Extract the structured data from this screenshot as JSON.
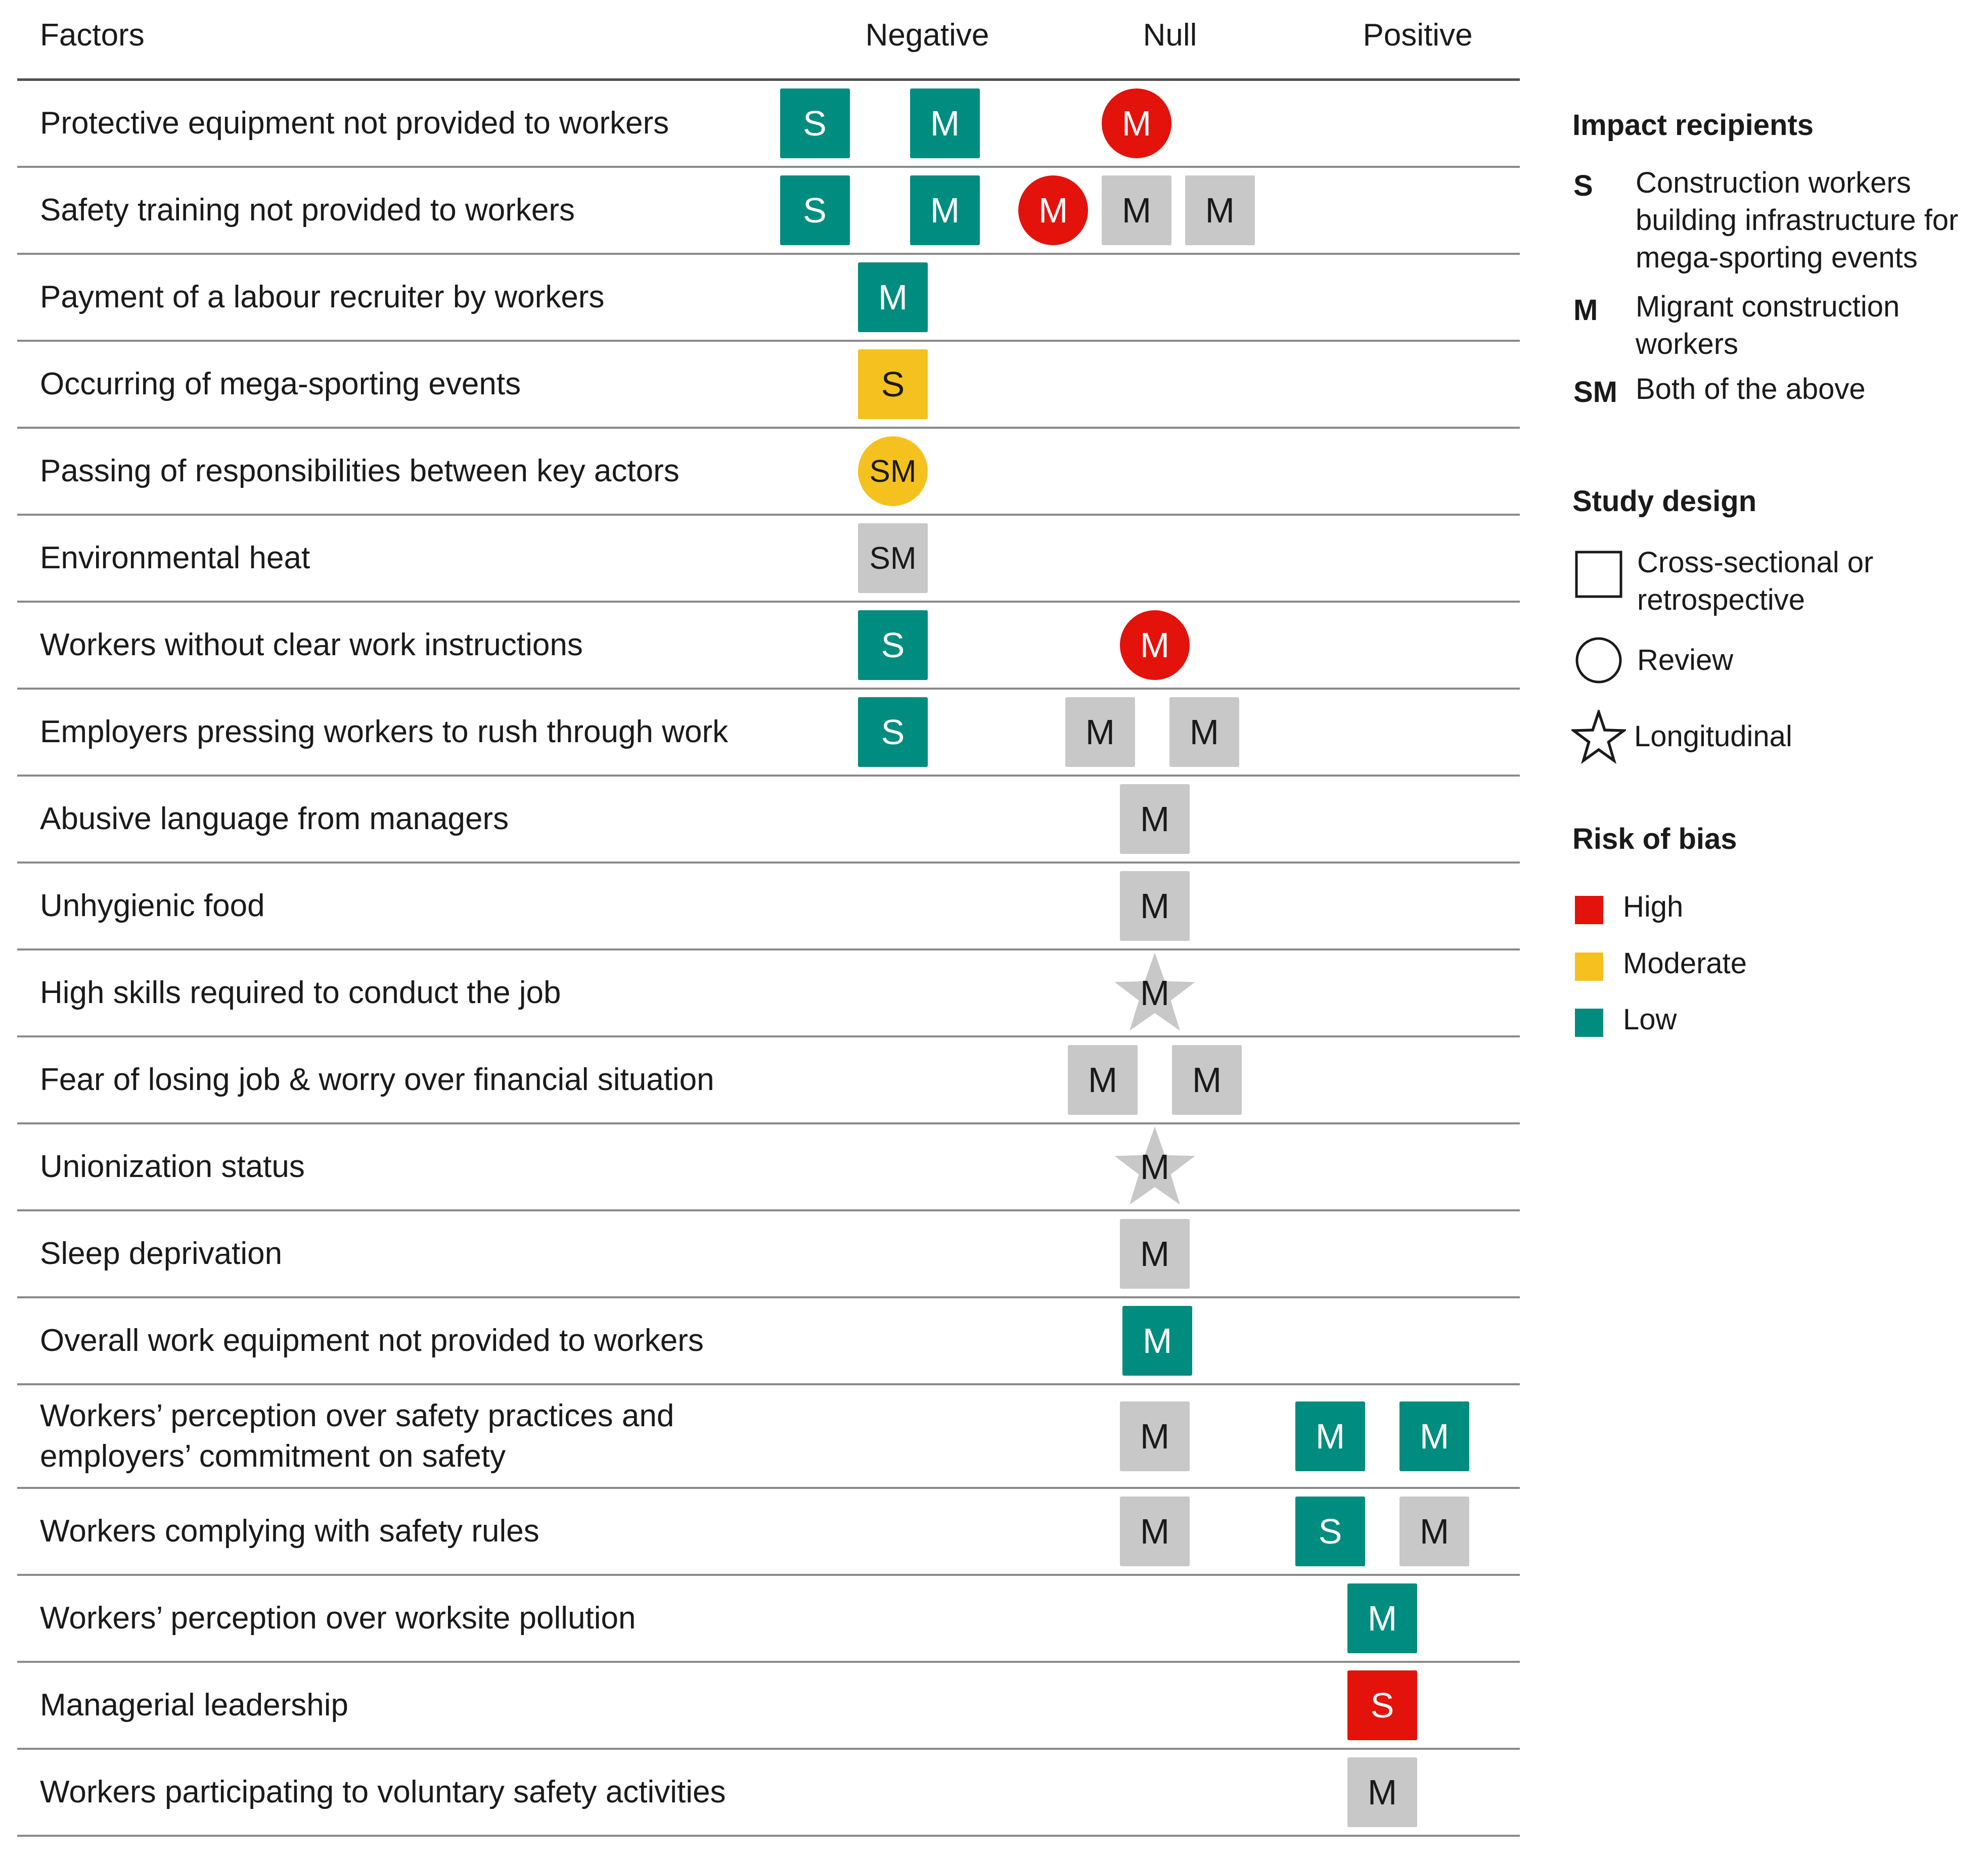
{
  "colors": {
    "high": "#e3120b",
    "moderate": "#f5c11f",
    "low": "#008c7f",
    "unrated": "#c8c8c8"
  },
  "header": {
    "factors": "Factors",
    "negative": "Negative",
    "null": "Null",
    "positive": "Positive"
  },
  "rows": [
    {
      "factor": "Protective equipment not provided to workers",
      "marks": [
        {
          "col": "negative",
          "slot": -1.5,
          "label": "S",
          "risk": "low",
          "shape": "square"
        },
        {
          "col": "negative",
          "slot": 1,
          "label": "M",
          "risk": "low",
          "shape": "square"
        },
        {
          "col": "null",
          "slot": 0,
          "label": "M",
          "risk": "high",
          "shape": "circle"
        }
      ]
    },
    {
      "factor": "Safety training not provided to workers",
      "marks": [
        {
          "col": "negative",
          "slot": -1.5,
          "label": "S",
          "risk": "low",
          "shape": "square"
        },
        {
          "col": "negative",
          "slot": 1,
          "label": "M",
          "risk": "low",
          "shape": "square"
        },
        {
          "col": "null",
          "slot": -1.6,
          "label": "M",
          "risk": "high",
          "shape": "circle"
        },
        {
          "col": "null",
          "slot": 0,
          "label": "M",
          "risk": "unrated",
          "shape": "square"
        },
        {
          "col": "null",
          "slot": 1.6,
          "label": "M",
          "risk": "unrated",
          "shape": "square"
        }
      ]
    },
    {
      "factor": "Payment of a labour recruiter by workers",
      "marks": [
        {
          "col": "negative",
          "slot": 0,
          "label": "M",
          "risk": "low",
          "shape": "square"
        }
      ]
    },
    {
      "factor": "Occurring of mega-sporting events",
      "marks": [
        {
          "col": "negative",
          "slot": 0,
          "label": "S",
          "risk": "moderate",
          "shape": "square"
        }
      ]
    },
    {
      "factor": "Passing of responsibilities between key actors",
      "marks": [
        {
          "col": "negative",
          "slot": 0,
          "label": "SM",
          "risk": "moderate",
          "shape": "circle"
        }
      ]
    },
    {
      "factor": "Environmental heat",
      "marks": [
        {
          "col": "negative",
          "slot": 0,
          "label": "SM",
          "risk": "unrated",
          "shape": "square"
        }
      ]
    },
    {
      "factor": "Workers without clear work instructions",
      "marks": [
        {
          "col": "negative",
          "slot": 0,
          "label": "S",
          "risk": "low",
          "shape": "square"
        },
        {
          "col": "null",
          "slot": 0.35,
          "label": "M",
          "risk": "high",
          "shape": "circle"
        }
      ]
    },
    {
      "factor": "Employers pressing workers to rush through work",
      "marks": [
        {
          "col": "negative",
          "slot": 0,
          "label": "S",
          "risk": "low",
          "shape": "square"
        },
        {
          "col": "null",
          "slot": -0.7,
          "label": "M",
          "risk": "unrated",
          "shape": "square"
        },
        {
          "col": "null",
          "slot": 1.3,
          "label": "M",
          "risk": "unrated",
          "shape": "square"
        }
      ]
    },
    {
      "factor": "Abusive language from managers",
      "marks": [
        {
          "col": "null",
          "slot": 0.35,
          "label": "M",
          "risk": "unrated",
          "shape": "square"
        }
      ]
    },
    {
      "factor": "Unhygienic food",
      "marks": [
        {
          "col": "null",
          "slot": 0.35,
          "label": "M",
          "risk": "unrated",
          "shape": "square"
        }
      ]
    },
    {
      "factor": "High skills required to conduct the job",
      "marks": [
        {
          "col": "null",
          "slot": 0.35,
          "label": "M",
          "risk": "unrated",
          "shape": "star"
        }
      ]
    },
    {
      "factor": "Fear of losing job & worry over financial situation",
      "marks": [
        {
          "col": "null",
          "slot": -0.65,
          "label": "M",
          "risk": "unrated",
          "shape": "square"
        },
        {
          "col": "null",
          "slot": 1.35,
          "label": "M",
          "risk": "unrated",
          "shape": "square"
        }
      ]
    },
    {
      "factor": "Unionization status",
      "marks": [
        {
          "col": "null",
          "slot": 0.35,
          "label": "M",
          "risk": "unrated",
          "shape": "star"
        }
      ]
    },
    {
      "factor": "Sleep deprivation",
      "marks": [
        {
          "col": "null",
          "slot": 0.35,
          "label": "M",
          "risk": "unrated",
          "shape": "square"
        }
      ]
    },
    {
      "factor": "Overall work equipment not provided to workers",
      "marks": [
        {
          "col": "null",
          "slot": 0.4,
          "label": "M",
          "risk": "low",
          "shape": "square"
        }
      ]
    },
    {
      "factor": "Workers’ perception over safety practices and employers’ commitment on safety",
      "tall": true,
      "marks": [
        {
          "col": "null",
          "slot": 0.35,
          "label": "M",
          "risk": "unrated",
          "shape": "square"
        },
        {
          "col": "positive",
          "slot": -1,
          "label": "M",
          "risk": "low",
          "shape": "square"
        },
        {
          "col": "positive",
          "slot": 1,
          "label": "M",
          "risk": "low",
          "shape": "square"
        }
      ]
    },
    {
      "factor": "Workers complying with safety rules",
      "marks": [
        {
          "col": "null",
          "slot": 0.35,
          "label": "M",
          "risk": "unrated",
          "shape": "square"
        },
        {
          "col": "positive",
          "slot": -1,
          "label": "S",
          "risk": "low",
          "shape": "square"
        },
        {
          "col": "positive",
          "slot": 1,
          "label": "M",
          "risk": "unrated",
          "shape": "square"
        }
      ]
    },
    {
      "factor": "Workers’ perception over worksite pollution",
      "marks": [
        {
          "col": "positive",
          "slot": 0,
          "label": "M",
          "risk": "low",
          "shape": "square"
        }
      ]
    },
    {
      "factor": "Managerial leadership",
      "marks": [
        {
          "col": "positive",
          "slot": 0,
          "label": "S",
          "risk": "high",
          "shape": "square"
        }
      ]
    },
    {
      "factor": "Workers participating to voluntary safety activities",
      "marks": [
        {
          "col": "positive",
          "slot": 0,
          "label": "M",
          "risk": "unrated",
          "shape": "square"
        }
      ]
    }
  ],
  "legend": {
    "recipients_title": "Impact recipients",
    "recipients": [
      {
        "code": "S",
        "desc": "Construction workers building infrastructure for mega-sporting events"
      },
      {
        "code": "M",
        "desc": "Migrant construction workers"
      },
      {
        "code": "SM",
        "desc": "Both of the above"
      }
    ],
    "design_title": "Study design",
    "designs": [
      {
        "shape": "square-outline-icon",
        "label": "Cross-sectional or retrospective"
      },
      {
        "shape": "circle-outline-icon",
        "label": "Review"
      },
      {
        "shape": "star-outline-icon",
        "label": "Longitudinal"
      }
    ],
    "bias_title": "Risk of bias",
    "biases": [
      {
        "risk": "high",
        "label": "High"
      },
      {
        "risk": "moderate",
        "label": "Moderate"
      },
      {
        "risk": "low",
        "label": "Low"
      }
    ]
  }
}
